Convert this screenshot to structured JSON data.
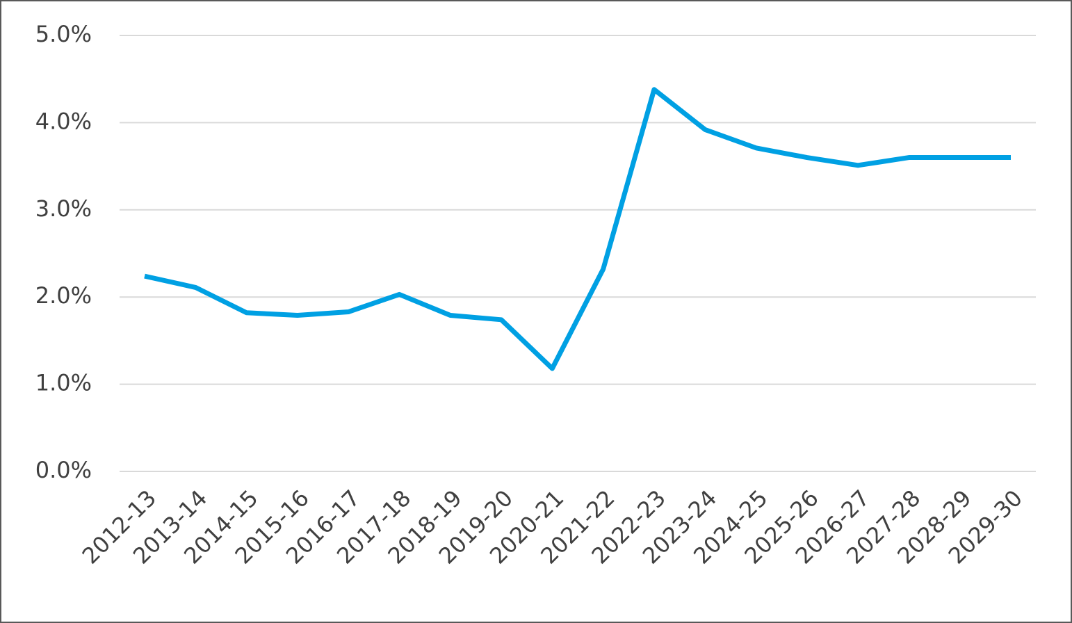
{
  "chart_data": {
    "type": "line",
    "categories": [
      "2012-13",
      "2013-14",
      "2014-15",
      "2015-16",
      "2016-17",
      "2017-18",
      "2018-19",
      "2019-20",
      "2020-21",
      "2021-22",
      "2022-23",
      "2023-24",
      "2024-25",
      "2025-26",
      "2026-27",
      "2027-28",
      "2028-29",
      "2029-30"
    ],
    "series": [
      {
        "color": "#00a0e3",
        "values": [
          2.24,
          2.11,
          1.82,
          1.79,
          1.83,
          2.03,
          1.79,
          1.74,
          1.18,
          2.32,
          4.38,
          3.92,
          3.71,
          3.6,
          3.51,
          3.6,
          3.6,
          3.6
        ]
      }
    ],
    "ylim": [
      0,
      5
    ],
    "yticks": [
      {
        "value": 0,
        "label": "0.0%"
      },
      {
        "value": 1,
        "label": "1.0%"
      },
      {
        "value": 2,
        "label": "2.0%"
      },
      {
        "value": 3,
        "label": "3.0%"
      },
      {
        "value": 4,
        "label": "4.0%"
      },
      {
        "value": 5,
        "label": "5.0%"
      }
    ],
    "grid": true
  }
}
